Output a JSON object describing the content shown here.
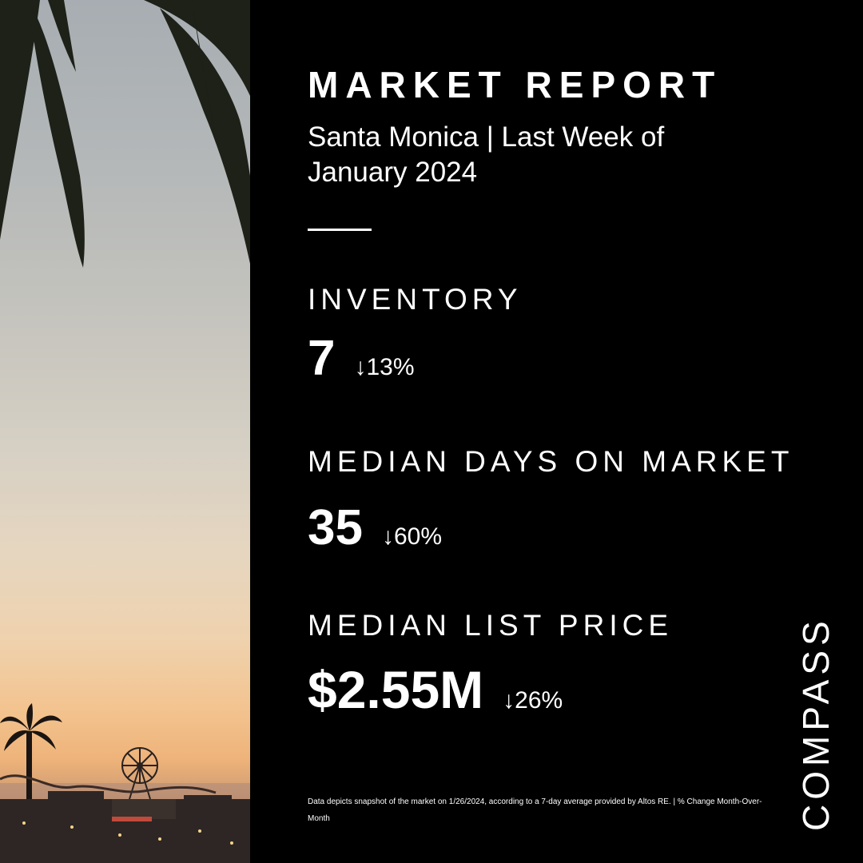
{
  "header": {
    "title": "MARKET REPORT",
    "subtitle": "Santa Monica | Last Week of January 2024"
  },
  "metrics": [
    {
      "label": "INVENTORY",
      "value": "7",
      "change": "↓13%"
    },
    {
      "label": "MEDIAN DAYS ON MARKET",
      "value": "35",
      "change": "↓60%"
    },
    {
      "label": "MEDIAN LIST PRICE",
      "value": "$2.55M",
      "change": "↓26%"
    }
  ],
  "footnote": "Data depicts snapshot of the market on 1/26/2024, according to a 7-day average provided by Altos RE. | % Change Month-Over-Month",
  "brand": {
    "logo_text": "COMPASS"
  },
  "colors": {
    "background": "#000000",
    "text": "#ffffff",
    "sky_top": "#a7adb2",
    "sky_bottom": "#f3c490"
  }
}
